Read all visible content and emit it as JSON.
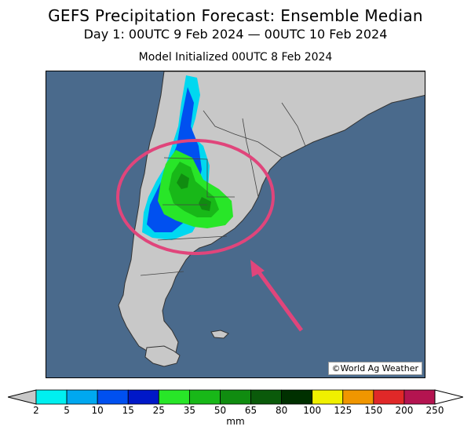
{
  "header": {
    "title": "GEFS Precipitation Forecast: Ensemble Median",
    "period": "Day 1: 00UTC 9 Feb 2024 — 00UTC 10 Feb 2024",
    "initialized": "Model Initialized 00UTC 8 Feb 2024"
  },
  "map": {
    "credit": "©World Ag Weather",
    "ocean_color": "#4a6a8c",
    "land_color": "#c8c8c8",
    "highlight_color": "#e0457b"
  },
  "legend": {
    "unit": "mm",
    "ticks": [
      "2",
      "5",
      "10",
      "15",
      "25",
      "35",
      "50",
      "65",
      "80",
      "100",
      "125",
      "150",
      "200",
      "250"
    ],
    "colors": [
      "#00f0f0",
      "#00a8f0",
      "#0050f0",
      "#0018c8",
      "#28e628",
      "#18b818",
      "#108c10",
      "#0a5a0a",
      "#003000",
      "#f0f000",
      "#f09600",
      "#e02828",
      "#b41450",
      "#f000f0",
      "#a050c8"
    ],
    "below_color": "#c8c8c8",
    "above_color": "#ffffff"
  }
}
